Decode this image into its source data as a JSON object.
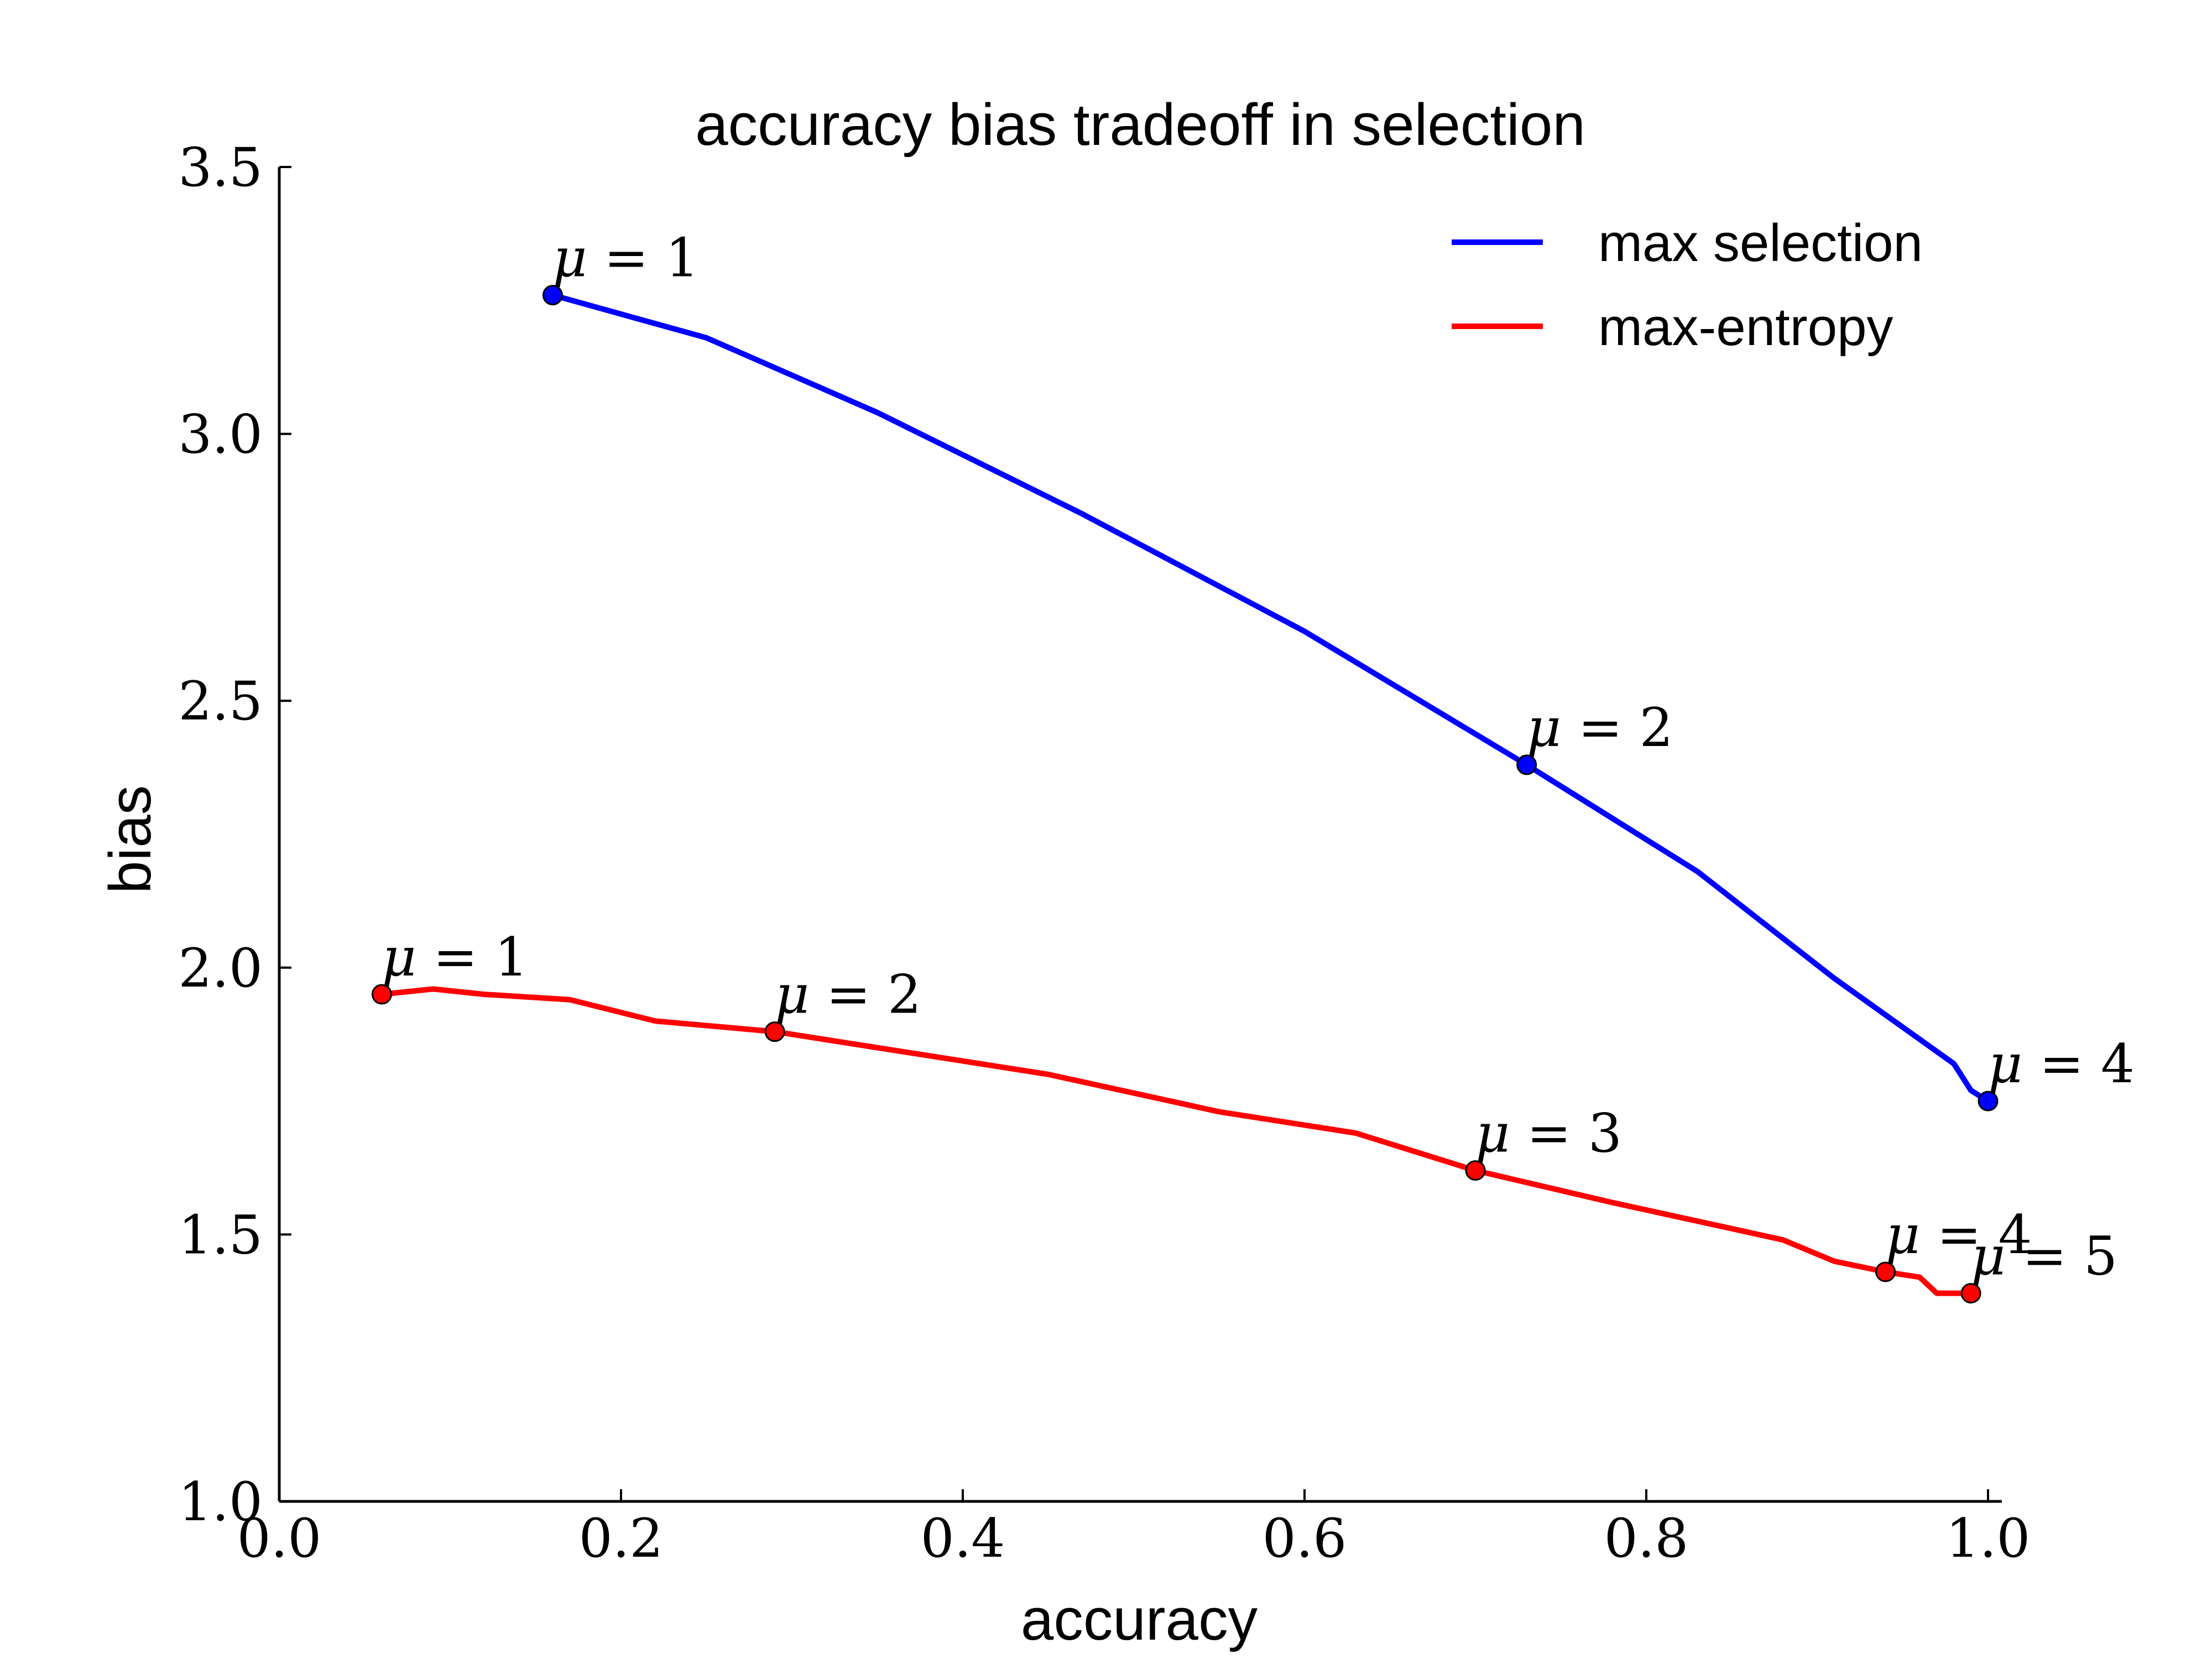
{
  "chart_data": {
    "type": "line",
    "title": "accuracy bias tradeoff in selection",
    "xlabel": "accuracy",
    "ylabel": "bias",
    "xlim": [
      0.0,
      1.0
    ],
    "ylim": [
      1.0,
      3.5
    ],
    "xticks": [
      "0.0",
      "0.2",
      "0.4",
      "0.6",
      "0.8",
      "1.0"
    ],
    "yticks": [
      "1.0",
      "1.5",
      "2.0",
      "2.5",
      "3.0",
      "3.5"
    ],
    "grid": false,
    "legend_position": "top-right",
    "series": [
      {
        "name": "max selection",
        "color": "#0000ff",
        "x": [
          0.16,
          0.25,
          0.35,
          0.47,
          0.6,
          0.73,
          0.83,
          0.91,
          0.98,
          0.99,
          1.0
        ],
        "y": [
          3.26,
          3.18,
          3.04,
          2.85,
          2.63,
          2.38,
          2.18,
          1.98,
          1.82,
          1.77,
          1.75
        ],
        "markers": [
          {
            "x": 0.16,
            "y": 3.26,
            "label": "1"
          },
          {
            "x": 0.73,
            "y": 2.38,
            "label": "2"
          },
          {
            "x": 1.0,
            "y": 1.75,
            "label": "4"
          }
        ]
      },
      {
        "name": "max-entropy",
        "color": "#ff0000",
        "x": [
          0.06,
          0.09,
          0.12,
          0.17,
          0.22,
          0.29,
          0.37,
          0.45,
          0.55,
          0.63,
          0.7,
          0.78,
          0.88,
          0.91,
          0.94,
          0.96,
          0.97,
          0.99
        ],
        "y": [
          1.95,
          1.96,
          1.95,
          1.94,
          1.9,
          1.88,
          1.84,
          1.8,
          1.73,
          1.69,
          1.62,
          1.56,
          1.49,
          1.45,
          1.43,
          1.42,
          1.39,
          1.39
        ],
        "markers": [
          {
            "x": 0.06,
            "y": 1.95,
            "label": "1"
          },
          {
            "x": 0.29,
            "y": 1.88,
            "label": "2"
          },
          {
            "x": 0.7,
            "y": 1.62,
            "label": "3"
          },
          {
            "x": 0.94,
            "y": 1.43,
            "label": "4"
          },
          {
            "x": 0.99,
            "y": 1.39,
            "label": "5"
          }
        ]
      }
    ]
  }
}
